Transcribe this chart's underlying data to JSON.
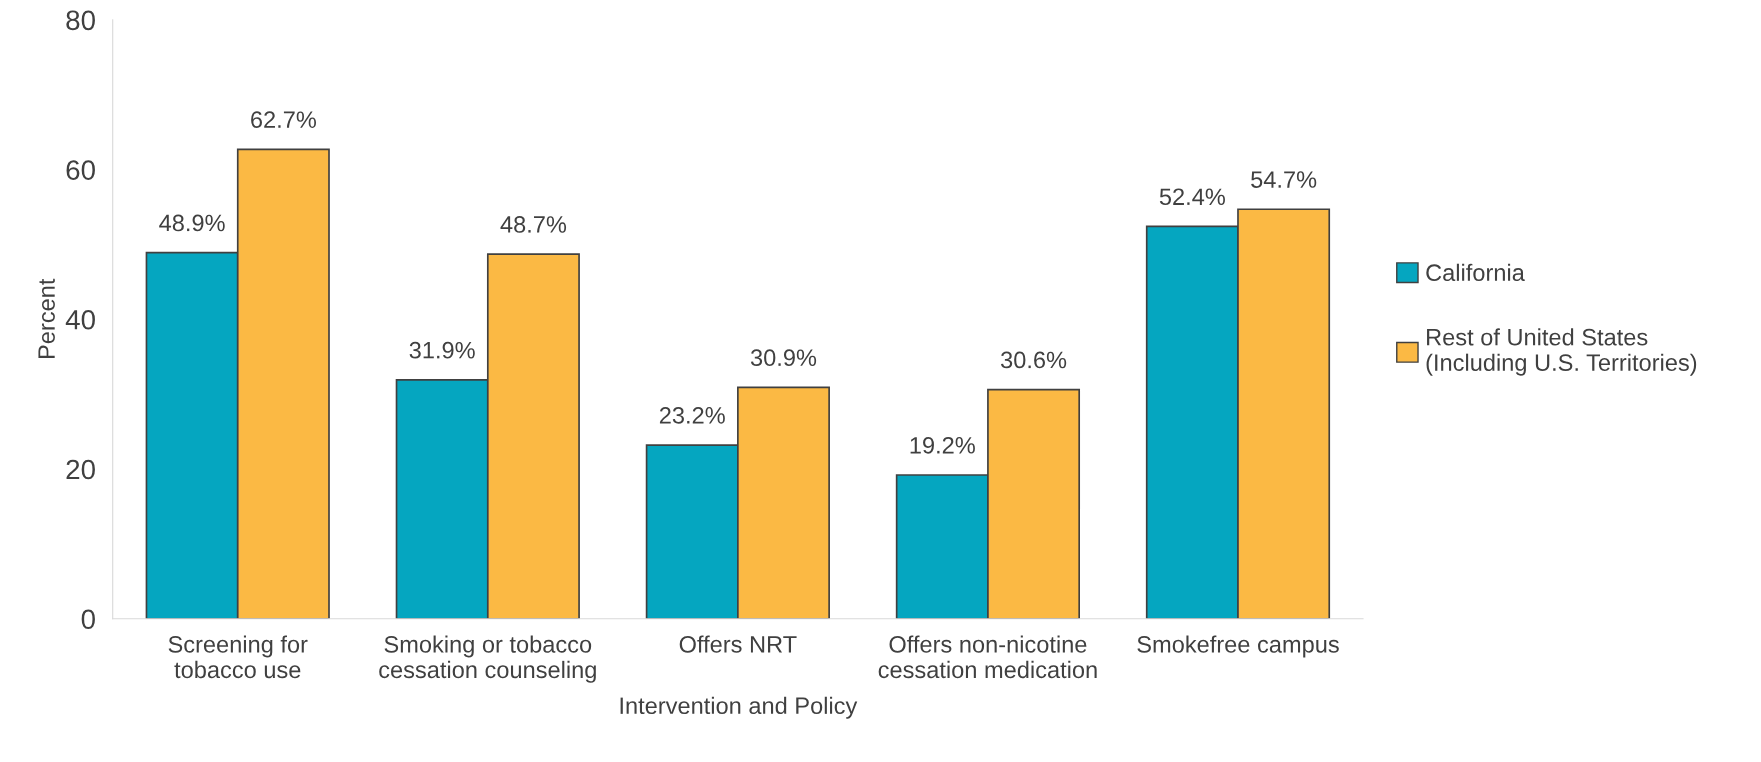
{
  "chart_data": {
    "type": "bar",
    "xlabel": "Intervention and Policy",
    "ylabel": "Percent",
    "categories": [
      "Screening for\ntobacco use",
      "Smoking or tobacco\ncessation counseling",
      "Offers NRT",
      "Offers non-nicotine\ncessation medication",
      "Smokefree campus"
    ],
    "series": [
      {
        "name": "California",
        "color": "#05a6c0",
        "values": [
          48.9,
          31.9,
          23.2,
          19.2,
          52.4
        ],
        "value_labels": [
          "48.9%",
          "31.9%",
          "23.2%",
          "19.2%",
          "52.4%"
        ]
      },
      {
        "name": "Rest of United States\n(Including U.S. Territories)",
        "color": "#fbb944",
        "values": [
          62.7,
          48.7,
          30.9,
          30.6,
          54.7
        ],
        "value_labels": [
          "62.7%",
          "48.7%",
          "30.9%",
          "30.6%",
          "54.7%"
        ]
      }
    ],
    "ylim": [
      0,
      80
    ],
    "yticks": [
      0,
      20,
      40,
      60,
      80
    ],
    "grid": false,
    "legend": "right"
  }
}
